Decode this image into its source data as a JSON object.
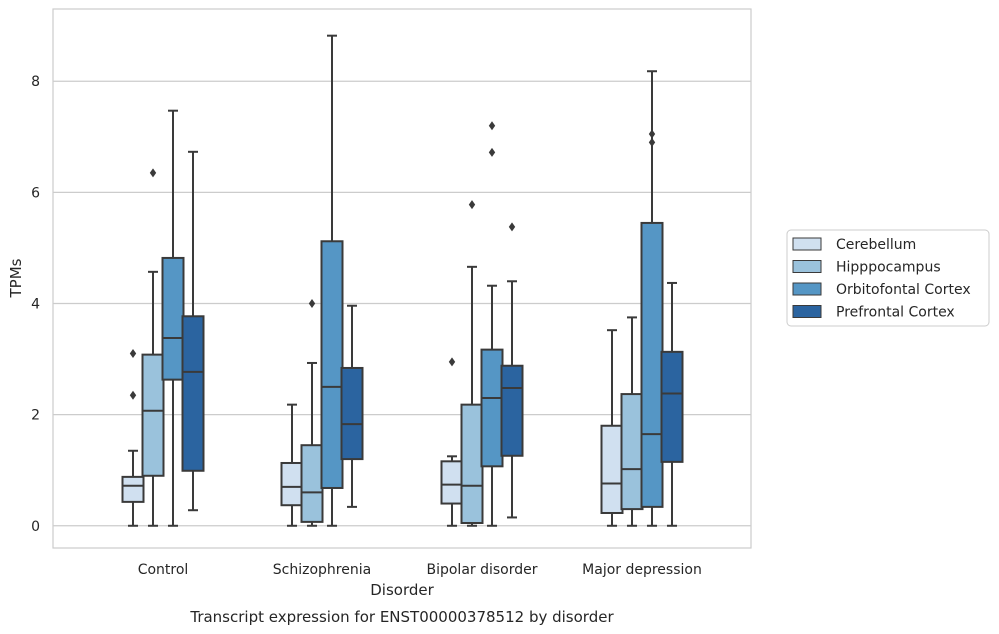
{
  "chart_data": {
    "type": "box",
    "title": "Transcript expression for ENST00000378512 by disorder",
    "xlabel": "Disorder",
    "ylabel": "TPMs",
    "ylim": [
      -0.4,
      9.3
    ],
    "yticks": [
      0,
      2,
      4,
      6,
      8
    ],
    "grid": "horizontal",
    "legend_position": "right",
    "categories": [
      "Control",
      "Schizophrenia",
      "Bipolar disorder",
      "Major depression"
    ],
    "series": [
      {
        "name": "Cerebellum",
        "color": "#d0e0f0",
        "boxes": [
          {
            "whisker_low": 0.0,
            "q1": 0.43,
            "median": 0.72,
            "q3": 0.88,
            "whisker_high": 1.35,
            "outliers": [
              2.35,
              3.1
            ]
          },
          {
            "whisker_low": 0.0,
            "q1": 0.37,
            "median": 0.7,
            "q3": 1.13,
            "whisker_high": 2.18,
            "outliers": []
          },
          {
            "whisker_low": 0.0,
            "q1": 0.4,
            "median": 0.74,
            "q3": 1.16,
            "whisker_high": 1.25,
            "outliers": [
              2.95
            ]
          },
          {
            "whisker_low": 0.0,
            "q1": 0.23,
            "median": 0.76,
            "q3": 1.8,
            "whisker_high": 3.52,
            "outliers": []
          }
        ]
      },
      {
        "name": "Hipppocampus",
        "color": "#9ac2dc",
        "boxes": [
          {
            "whisker_low": 0.0,
            "q1": 0.9,
            "median": 2.07,
            "q3": 3.08,
            "whisker_high": 4.57,
            "outliers": [
              6.35
            ]
          },
          {
            "whisker_low": 0.0,
            "q1": 0.07,
            "median": 0.6,
            "q3": 1.45,
            "whisker_high": 2.93,
            "outliers": [
              4.0
            ]
          },
          {
            "whisker_low": 0.0,
            "q1": 0.05,
            "median": 0.72,
            "q3": 2.18,
            "whisker_high": 4.66,
            "outliers": [
              5.78
            ]
          },
          {
            "whisker_low": 0.0,
            "q1": 0.3,
            "median": 1.02,
            "q3": 2.37,
            "whisker_high": 3.75,
            "outliers": []
          }
        ]
      },
      {
        "name": "Orbitofontal Cortex",
        "color": "#5596c5",
        "boxes": [
          {
            "whisker_low": 0.0,
            "q1": 2.63,
            "median": 3.38,
            "q3": 4.82,
            "whisker_high": 7.47,
            "outliers": []
          },
          {
            "whisker_low": 0.0,
            "q1": 0.68,
            "median": 2.5,
            "q3": 5.12,
            "whisker_high": 8.82,
            "outliers": []
          },
          {
            "whisker_low": 0.0,
            "q1": 1.07,
            "median": 2.3,
            "q3": 3.17,
            "whisker_high": 4.32,
            "outliers": [
              6.72,
              7.2
            ]
          },
          {
            "whisker_low": 0.0,
            "q1": 0.34,
            "median": 1.65,
            "q3": 5.45,
            "whisker_high": 8.18,
            "outliers": [
              6.9,
              7.05
            ]
          }
        ]
      },
      {
        "name": "Prefrontal Cortex",
        "color": "#2b64a0",
        "boxes": [
          {
            "whisker_low": 0.28,
            "q1": 0.99,
            "median": 2.77,
            "q3": 3.77,
            "whisker_high": 6.73,
            "outliers": []
          },
          {
            "whisker_low": 0.34,
            "q1": 1.2,
            "median": 1.83,
            "q3": 2.84,
            "whisker_high": 3.96,
            "outliers": []
          },
          {
            "whisker_low": 0.15,
            "q1": 1.26,
            "median": 2.48,
            "q3": 2.88,
            "whisker_high": 4.4,
            "outliers": [
              5.38
            ]
          },
          {
            "whisker_low": 0.0,
            "q1": 1.15,
            "median": 2.38,
            "q3": 3.13,
            "whisker_high": 4.37,
            "outliers": []
          }
        ]
      }
    ]
  }
}
